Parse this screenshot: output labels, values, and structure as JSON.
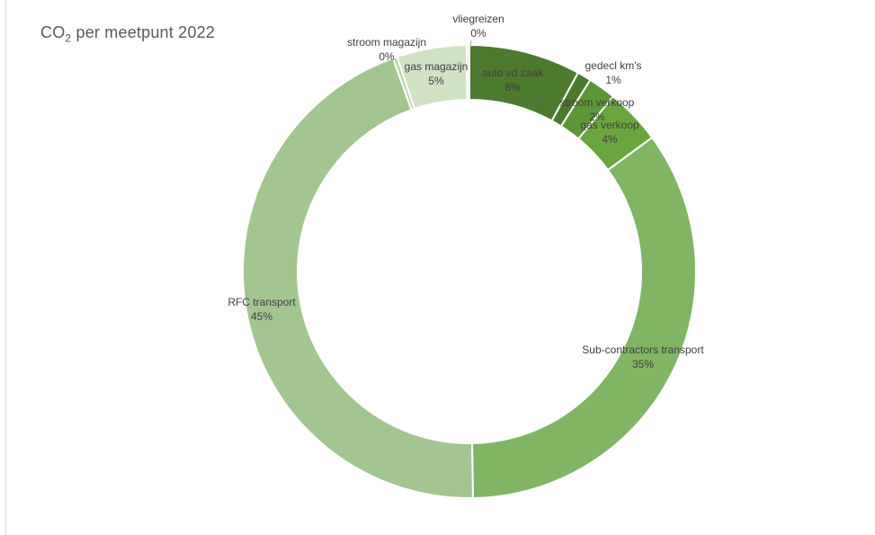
{
  "chart_data": {
    "type": "pie",
    "variant": "donut",
    "title_main": "CO",
    "title_subscript": "2",
    "title_rest": " per meetpunt 2022",
    "legend": "none",
    "slices": [
      {
        "name": "auto vd zaak",
        "value": 8,
        "label": "8%",
        "color": "#4c7a2e"
      },
      {
        "name": "gedecl km's",
        "value": 1,
        "label": "1%",
        "color": "#4a7a2c"
      },
      {
        "name": "stroom verkoop",
        "value": 2,
        "label": "2%",
        "color": "#5c9636"
      },
      {
        "name": "gas verkoop",
        "value": 4,
        "label": "4%",
        "color": "#6aa63f"
      },
      {
        "name": "Sub-contractors transport",
        "value": 35,
        "label": "35%",
        "color": "#80b564"
      },
      {
        "name": "RFC transport",
        "value": 45,
        "label": "45%",
        "color": "#a3c590"
      },
      {
        "name": "stroom magazijn",
        "value": 0.3,
        "label": "0%",
        "color": "#b9d5a8"
      },
      {
        "name": "gas magazijn",
        "value": 5,
        "label": "5%",
        "color": "#d1e2c5"
      },
      {
        "name": "vliegreizen",
        "value": 0.2,
        "label": "0%",
        "color": "#e3eedb"
      }
    ]
  }
}
